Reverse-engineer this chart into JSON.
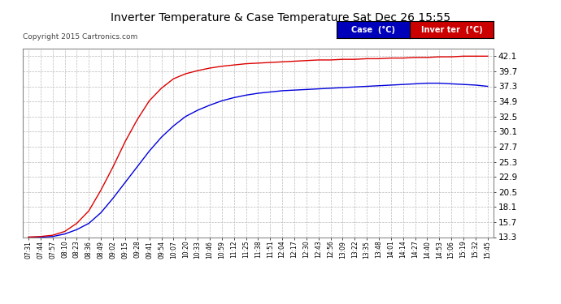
{
  "title": "Inverter Temperature & Case Temperature Sat Dec 26 15:55",
  "copyright": "Copyright 2015 Cartronics.com",
  "background_color": "#ffffff",
  "plot_bg_color": "#ffffff",
  "grid_color": "#bbbbbb",
  "ylim": [
    13.3,
    43.3
  ],
  "yticks": [
    13.3,
    15.7,
    18.1,
    20.5,
    22.9,
    25.3,
    27.7,
    30.1,
    32.5,
    34.9,
    37.3,
    39.7,
    42.1
  ],
  "xtick_labels": [
    "07:31",
    "07:44",
    "07:57",
    "08:10",
    "08:23",
    "08:36",
    "08:49",
    "09:02",
    "09:15",
    "09:28",
    "09:41",
    "09:54",
    "10:07",
    "10:20",
    "10:33",
    "10:46",
    "10:59",
    "11:12",
    "11:25",
    "11:38",
    "11:51",
    "12:04",
    "12:17",
    "12:30",
    "12:43",
    "12:56",
    "13:09",
    "13:22",
    "13:35",
    "13:48",
    "14:01",
    "14:14",
    "14:27",
    "14:40",
    "14:53",
    "15:06",
    "15:19",
    "15:32",
    "15:45"
  ],
  "case_color": "#0000dd",
  "inverter_color": "#dd0000",
  "legend_case_bg": "#0000bb",
  "legend_inverter_bg": "#cc0000",
  "legend_case_label": "Case  (°C)",
  "legend_inverter_label": "Inver ter  (°C)",
  "case_data": [
    13.3,
    13.3,
    13.4,
    13.8,
    14.5,
    15.5,
    17.2,
    19.5,
    22.0,
    24.5,
    27.0,
    29.2,
    31.0,
    32.5,
    33.5,
    34.3,
    35.0,
    35.5,
    35.9,
    36.2,
    36.4,
    36.6,
    36.7,
    36.8,
    36.9,
    37.0,
    37.1,
    37.2,
    37.3,
    37.4,
    37.5,
    37.6,
    37.7,
    37.8,
    37.8,
    37.7,
    37.6,
    37.5,
    37.3
  ],
  "inverter_data": [
    13.3,
    13.4,
    13.6,
    14.2,
    15.5,
    17.5,
    20.8,
    24.5,
    28.5,
    32.0,
    35.0,
    37.0,
    38.5,
    39.3,
    39.8,
    40.2,
    40.5,
    40.7,
    40.9,
    41.0,
    41.1,
    41.2,
    41.3,
    41.4,
    41.5,
    41.5,
    41.6,
    41.6,
    41.7,
    41.7,
    41.8,
    41.8,
    41.9,
    41.9,
    42.0,
    42.0,
    42.1,
    42.1,
    42.1
  ]
}
